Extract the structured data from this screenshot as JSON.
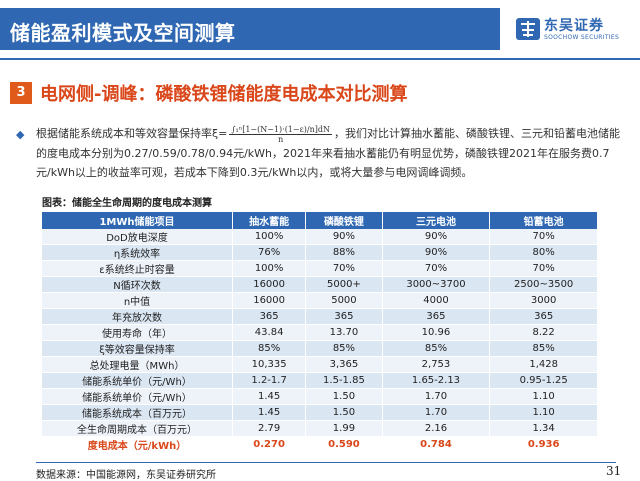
{
  "header": {
    "title": "储能盈利模式及空间测算",
    "logo_cn": "东吴证券",
    "logo_en": "SOOCHOW SECURITIES"
  },
  "section": {
    "number": "3",
    "title": "电网侧-调峰：磷酸铁锂储能度电成本对比测算"
  },
  "paragraph": {
    "part1": "根据储能系统成本和等效容量保持率",
    "formula_prefix": "ξ=",
    "formula_numerator": "∫₁ⁿ[1−(N−1)·(1−ε)/n]dN",
    "formula_denominator": "n",
    "part2": "，我们对比计算抽水蓄能、磷酸铁锂、三元和铅蓄电池储能的度电成本分别为0.27/0.59/0.78/0.94元/kWh，2021年来看抽水蓄能仍有明显优势，磷酸铁锂2021年在服务费0.7元/kWh以上的收益率可观，若成本下降到0.3元/kWh以内，或将大量参与电网调峰调频。"
  },
  "figure": {
    "caption": "图表：储能全生命周期的度电成本测算"
  },
  "table": {
    "headers": [
      "1MWh储能项目",
      "抽水蓄能",
      "磷酸铁锂",
      "三元电池",
      "铅蓄电池"
    ],
    "rows": [
      [
        "DoD放电深度",
        "100%",
        "90%",
        "90%",
        "70%"
      ],
      [
        "η系统效率",
        "76%",
        "88%",
        "90%",
        "80%"
      ],
      [
        "ε系统终止时容量",
        "100%",
        "70%",
        "70%",
        "70%"
      ],
      [
        "N循环次数",
        "16000",
        "5000+",
        "3000~3700",
        "2500~3500"
      ],
      [
        "n中值",
        "16000",
        "5000",
        "4000",
        "3000"
      ],
      [
        "年充放次数",
        "365",
        "365",
        "365",
        "365"
      ],
      [
        "使用寿命（年）",
        "43.84",
        "13.70",
        "10.96",
        "8.22"
      ],
      [
        "ξ等效容量保持率",
        "85%",
        "85%",
        "85%",
        "85%"
      ],
      [
        "总处理电量（MWh）",
        "10,335",
        "3,365",
        "2,753",
        "1,428"
      ],
      [
        "储能系统单价（元/Wh）",
        "1.2-1.7",
        "1.5-1.85",
        "1.65-2.13",
        "0.95-1.25"
      ],
      [
        "储能系统单价（元/Wh）",
        "1.45",
        "1.50",
        "1.70",
        "1.10"
      ],
      [
        "储能系统成本（百万元）",
        "1.45",
        "1.50",
        "1.70",
        "1.10"
      ],
      [
        "全生命周期成本（百万元）",
        "2.79",
        "1.99",
        "2.16",
        "1.34"
      ],
      [
        "度电成本（元/kWh）",
        "0.270",
        "0.590",
        "0.784",
        "0.936"
      ]
    ]
  },
  "footer": {
    "source": "数据来源：中国能源网，东吴证券研究所",
    "page": "31"
  },
  "colors": {
    "brand_blue": "#2f67b2",
    "accent_orange": "#d9471a",
    "row_alt": "#dbe6f3"
  }
}
